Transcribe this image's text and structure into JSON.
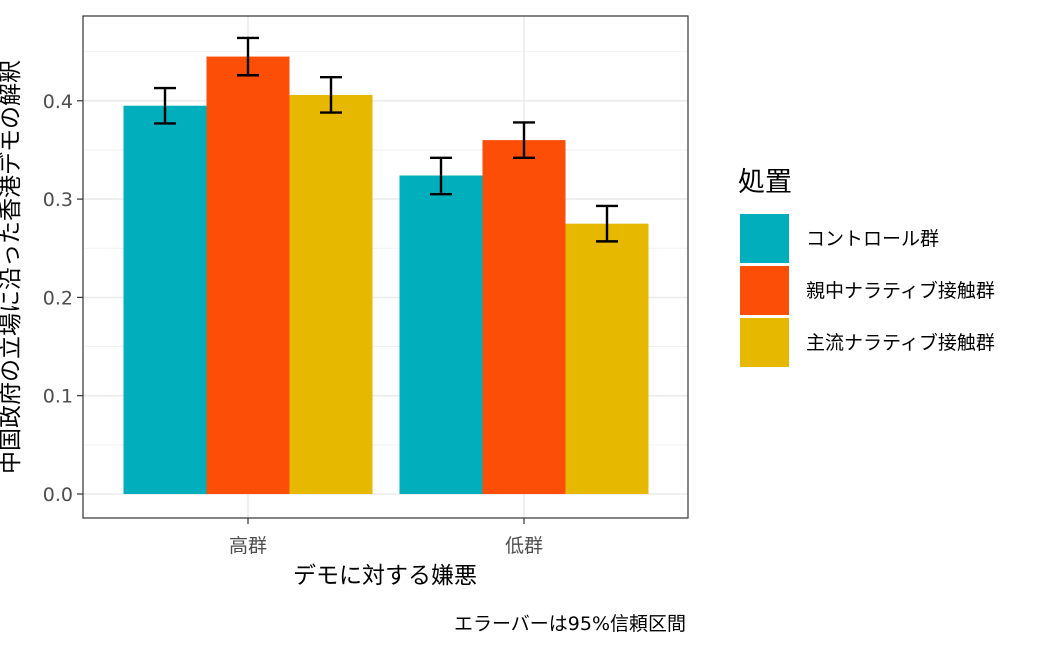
{
  "chart_data": {
    "type": "bar",
    "title": "",
    "xlabel": "デモに対する嫌悪",
    "ylabel": "中国政府の立場に沿った香港デモの解釈",
    "caption": "エラーバーは95%信頼区間",
    "categories": [
      "高群",
      "低群"
    ],
    "ylim": [
      0,
      0.47
    ],
    "yticks": [
      0.0,
      0.1,
      0.2,
      0.3,
      0.4
    ],
    "ytick_labels": [
      "0.0",
      "0.1",
      "0.2",
      "0.3",
      "0.4"
    ],
    "grid": true,
    "legend": {
      "title": "処置",
      "position": "right"
    },
    "series": [
      {
        "name": "コントロール群",
        "color": "#00AFBB",
        "values": [
          0.395,
          0.324
        ],
        "err_low": [
          0.377,
          0.305
        ],
        "err_high": [
          0.413,
          0.342
        ]
      },
      {
        "name": "親中ナラティブ接触群",
        "color": "#FC4E07",
        "values": [
          0.445,
          0.36
        ],
        "err_low": [
          0.426,
          0.342
        ],
        "err_high": [
          0.464,
          0.378
        ]
      },
      {
        "name": "主流ナラティブ接触群",
        "color": "#E7B800",
        "values": [
          0.406,
          0.275
        ],
        "err_low": [
          0.388,
          0.257
        ],
        "err_high": [
          0.424,
          0.293
        ]
      }
    ]
  }
}
